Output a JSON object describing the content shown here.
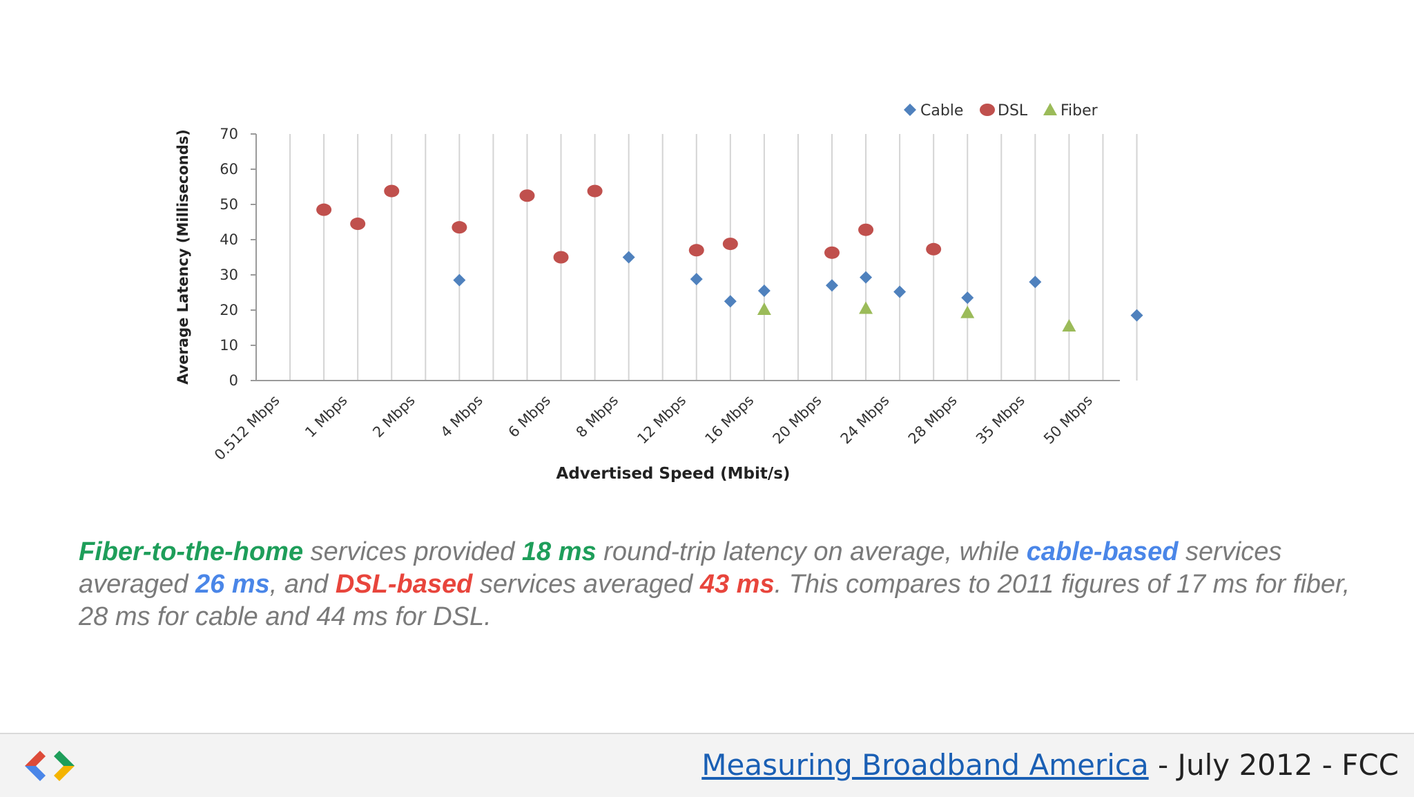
{
  "chart_data": {
    "type": "scatter",
    "categories": [
      "0.512 Mbps",
      "",
      "1 Mbps",
      "",
      "2 Mbps",
      "",
      "4 Mbps",
      "",
      "6 Mbps",
      "",
      "8 Mbps",
      "",
      "12 Mbps",
      "",
      "16 Mbps",
      "",
      "20 Mbps",
      "",
      "24 Mbps",
      "",
      "28 Mbps",
      "",
      "35 Mbps",
      "",
      "50 Mbps",
      ""
    ],
    "series": [
      {
        "name": "Cable",
        "color": "#4f81bd",
        "marker": "diamond",
        "values": [
          null,
          null,
          null,
          null,
          null,
          28.5,
          null,
          null,
          null,
          null,
          35,
          null,
          28.8,
          22.5,
          25.5,
          null,
          27,
          29.3,
          25.2,
          null,
          23.5,
          null,
          28,
          null,
          null,
          18.5
        ]
      },
      {
        "name": "DSL",
        "color": "#c0504d",
        "marker": "circle",
        "values": [
          null,
          48.5,
          44.5,
          53.8,
          null,
          43.5,
          null,
          52.5,
          35,
          53.8,
          null,
          null,
          37,
          38.8,
          null,
          null,
          36.3,
          42.8,
          null,
          37.3,
          null,
          null,
          null,
          null,
          null,
          null
        ]
      },
      {
        "name": "Fiber",
        "color": "#9bbb59",
        "marker": "triangle",
        "values": [
          null,
          null,
          null,
          null,
          null,
          null,
          null,
          null,
          null,
          null,
          null,
          null,
          null,
          null,
          20.2,
          null,
          null,
          20.5,
          null,
          null,
          19.3,
          null,
          null,
          15.5,
          null,
          null
        ]
      }
    ],
    "xlabel": "Advertised Speed (Mbit/s)",
    "ylabel": "Average Latency (Milliseconds)",
    "ylim": [
      0,
      70
    ],
    "yticks": [
      0,
      10,
      20,
      30,
      40,
      50,
      60,
      70
    ],
    "grid": "vertical",
    "legend": "top-right"
  },
  "caption": {
    "fiber_label": "Fiber-to-the-home",
    "text1": " services provided ",
    "fiber_value": "18 ms",
    "text2": " round-trip latency on average, while ",
    "cable_label": "cable-based",
    "text3": " services averaged ",
    "cable_value": "26 ms",
    "text4": ", and ",
    "dsl_label": "DSL-based",
    "text5": " services averaged ",
    "dsl_value": "43 ms",
    "text6": ". This compares to 2011 figures of 17 ms for fiber, 28 ms for cable and 44 ms for DSL."
  },
  "footer": {
    "link_text": "Measuring Broadband America",
    "suffix": " - July 2012 - FCC"
  },
  "colors": {
    "fiber_text": "#1e9e5a",
    "cable_text": "#4a86e8",
    "dsl_text": "#e8453c"
  },
  "logo_icon": "google-developers-logo-icon"
}
